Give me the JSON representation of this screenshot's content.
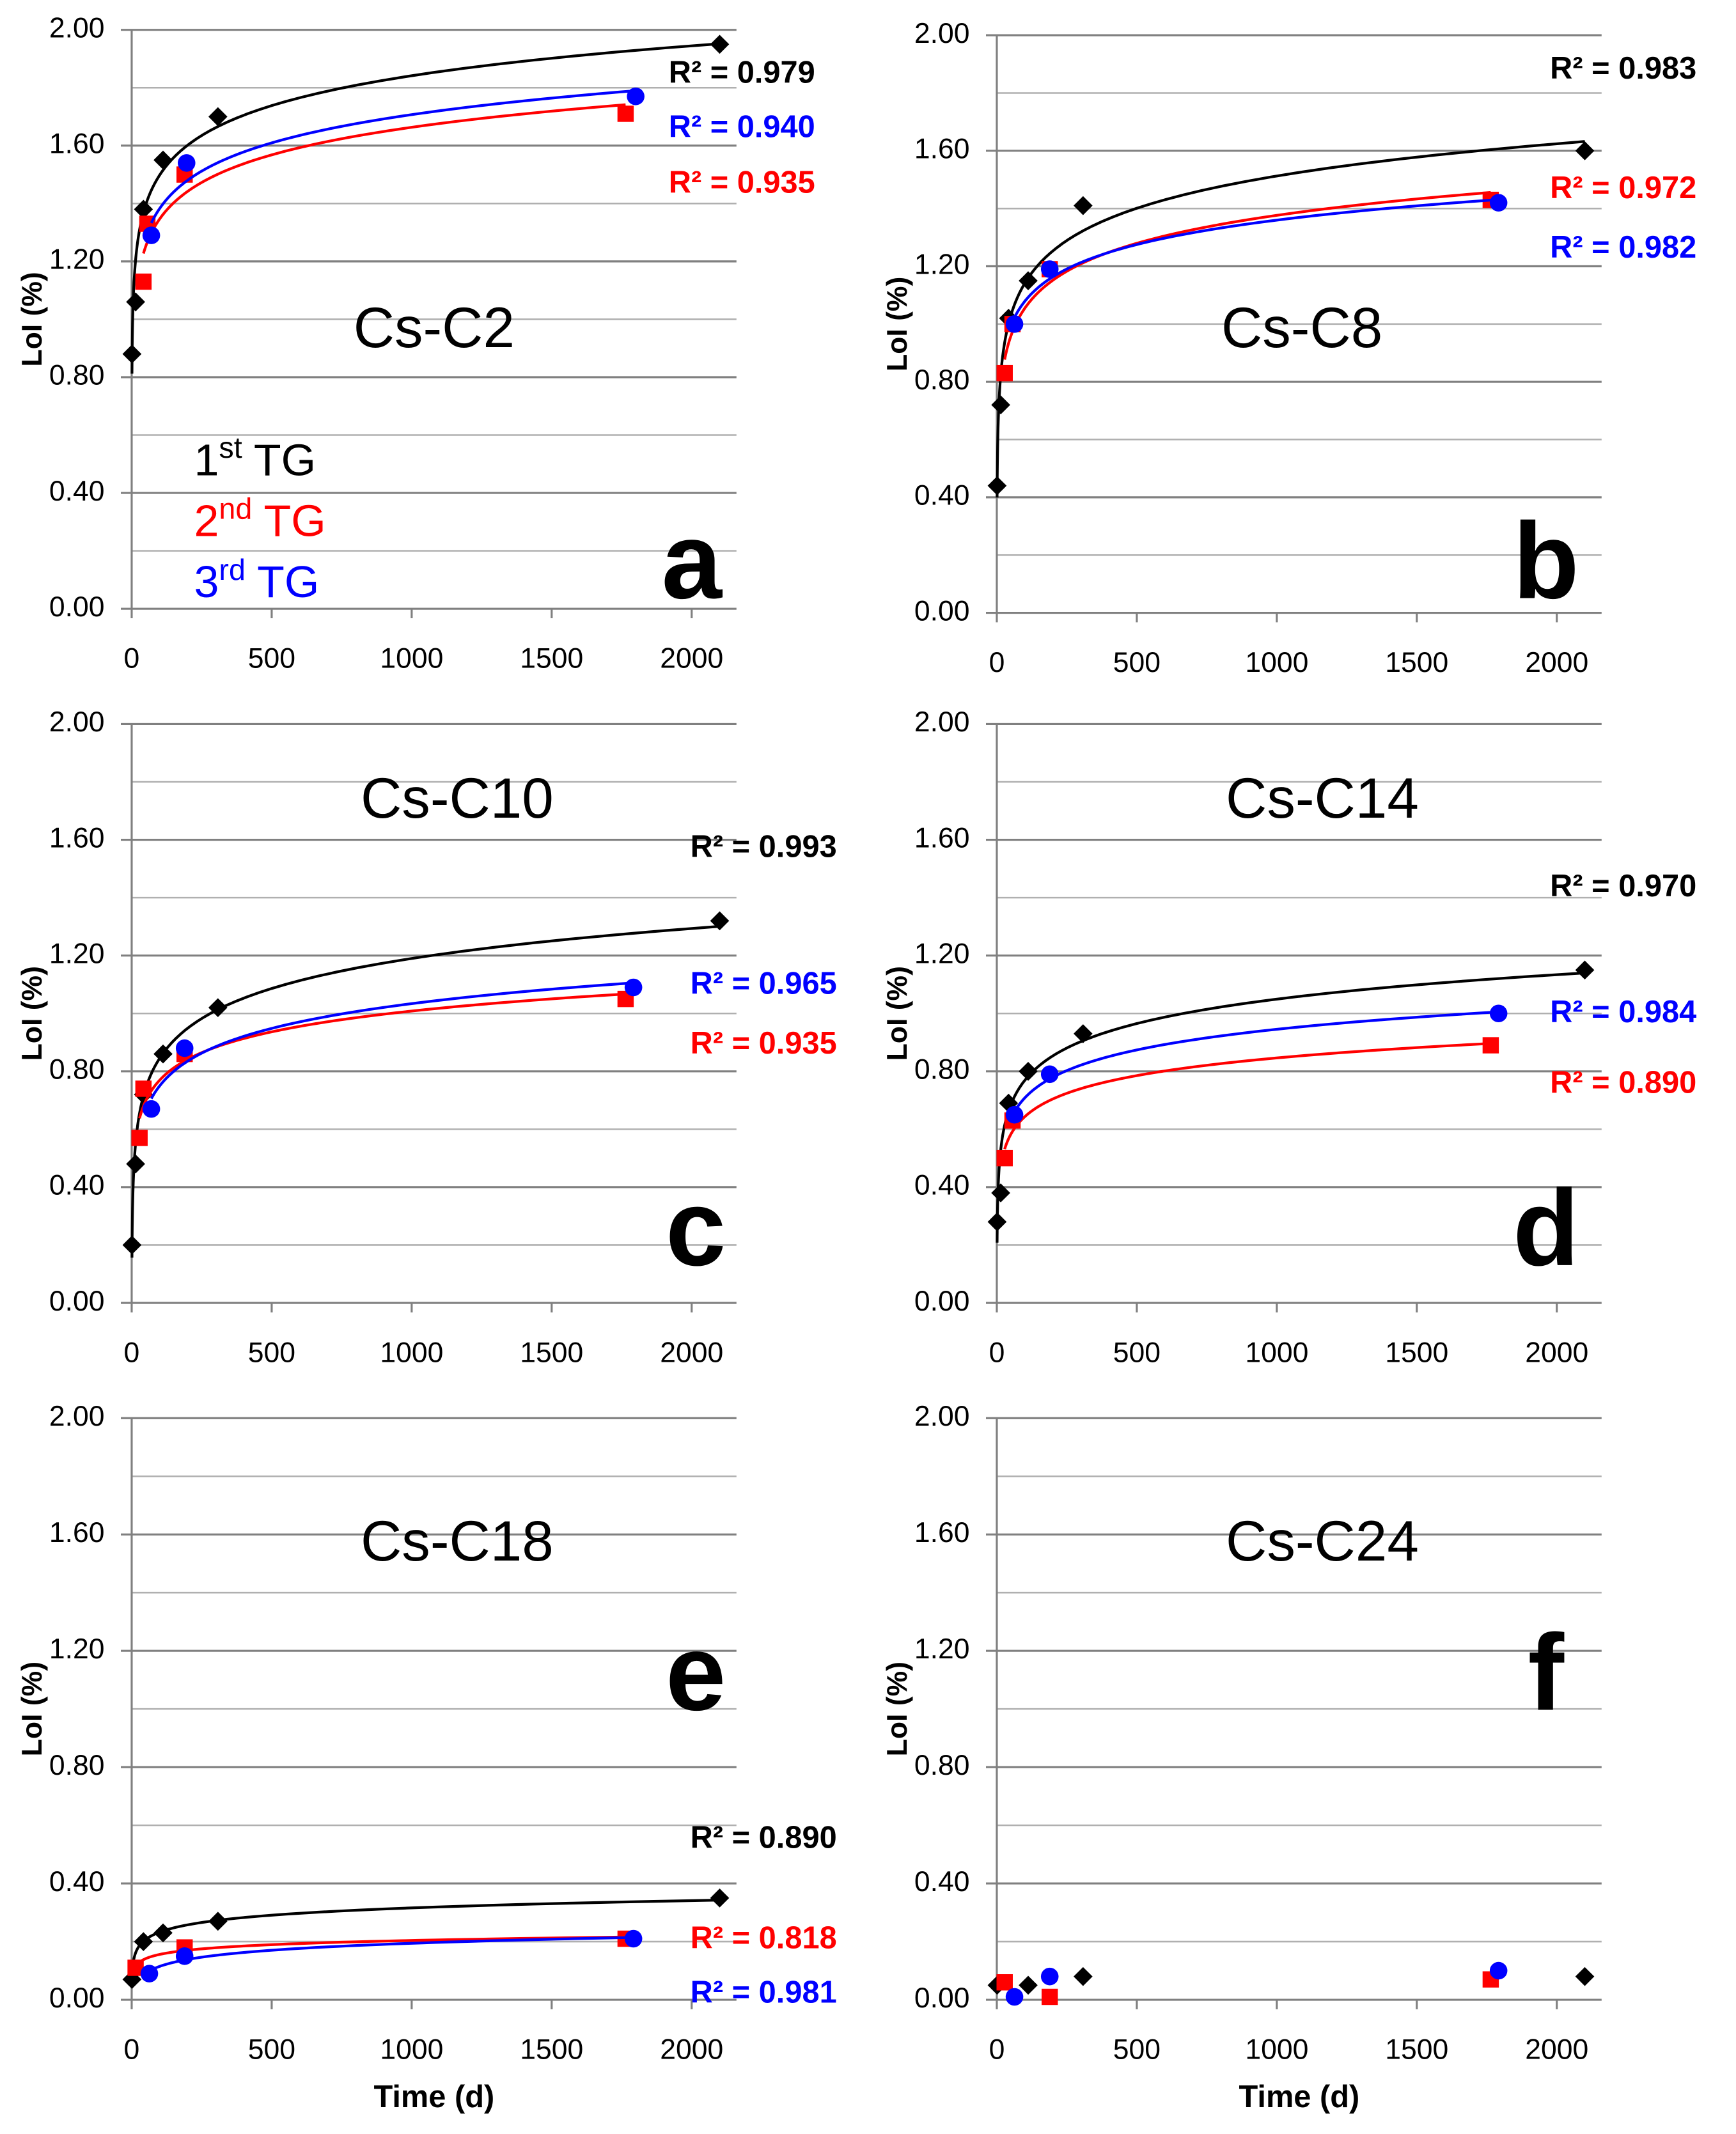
{
  "chart_data": [
    {
      "type": "scatter",
      "title": "Cs-C2",
      "panel_label": "a",
      "ylabel": "LoI (%)",
      "fit": true,
      "legend": true,
      "xlim": [
        0,
        2160
      ],
      "ylim": [
        0,
        2
      ],
      "xticks": [
        0,
        500,
        1000,
        1500,
        2000
      ],
      "yticks": [
        {
          "value": 0,
          "label": "0.00"
        },
        {
          "value": 0.4,
          "label": "0.40"
        },
        {
          "value": 0.8,
          "label": "0.80"
        },
        {
          "value": 1.2,
          "label": "1.20"
        },
        {
          "value": 1.6,
          "label": "1.60"
        },
        {
          "value": 2,
          "label": "2.00"
        }
      ],
      "minor_yticks": [
        0.2,
        0.6,
        1,
        1.4,
        1.8
      ],
      "series": [
        {
          "name": "1st TG",
          "color": "#000000",
          "marker": "diamond",
          "x": [
            1,
            14,
            42,
            112,
            308,
            2100
          ],
          "values": [
            0.88,
            1.06,
            1.38,
            1.55,
            1.7,
            1.95
          ],
          "r2_label": "R² = 0.979"
        },
        {
          "name": "2nd TG",
          "color": "#ff0000",
          "marker": "square",
          "x": [
            42,
            56,
            189,
            1764
          ],
          "values": [
            1.13,
            1.33,
            1.5,
            1.71
          ],
          "r2_label": "R² = 0.935"
        },
        {
          "name": "3rd TG",
          "color": "#0000ff",
          "marker": "circle",
          "x": [
            70,
            196,
            1800
          ],
          "values": [
            1.29,
            1.54,
            1.77
          ],
          "r2_label": "R² = 0.940"
        }
      ]
    },
    {
      "type": "scatter",
      "title": "Cs-C8",
      "panel_label": "b",
      "ylabel": "LoI (%)",
      "fit": true,
      "xlim": [
        0,
        2160
      ],
      "ylim": [
        0,
        2
      ],
      "xticks": [
        0,
        500,
        1000,
        1500,
        2000
      ],
      "yticks": [
        {
          "value": 0,
          "label": "0.00"
        },
        {
          "value": 0.4,
          "label": "0.40"
        },
        {
          "value": 0.8,
          "label": "0.80"
        },
        {
          "value": 1.2,
          "label": "1.20"
        },
        {
          "value": 1.6,
          "label": "1.60"
        },
        {
          "value": 2,
          "label": "2.00"
        }
      ],
      "minor_yticks": [
        0.2,
        0.6,
        1,
        1.4,
        1.8
      ],
      "series": [
        {
          "color": "#000000",
          "marker": "diamond",
          "x": [
            1,
            14,
            42,
            112,
            308,
            2100
          ],
          "values": [
            0.44,
            0.72,
            1.02,
            1.15,
            1.41,
            1.6
          ],
          "r2_label": "R² = 0.983"
        },
        {
          "color": "#ff0000",
          "marker": "square",
          "x": [
            28,
            56,
            189,
            1764
          ],
          "values": [
            0.83,
            1.0,
            1.19,
            1.43
          ],
          "r2_label": "R² = 0.972"
        },
        {
          "color": "#0000ff",
          "marker": "circle",
          "x": [
            63,
            189,
            1792
          ],
          "values": [
            1.0,
            1.19,
            1.42
          ],
          "r2_label": "R² = 0.982"
        }
      ]
    },
    {
      "type": "scatter",
      "title": "Cs-C10",
      "panel_label": "c",
      "ylabel": "LoI (%)",
      "fit": true,
      "xlim": [
        0,
        2160
      ],
      "ylim": [
        0,
        2
      ],
      "xticks": [
        0,
        500,
        1000,
        1500,
        2000
      ],
      "yticks": [
        {
          "value": 0,
          "label": "0.00"
        },
        {
          "value": 0.4,
          "label": "0.40"
        },
        {
          "value": 0.8,
          "label": "0.80"
        },
        {
          "value": 1.2,
          "label": "1.20"
        },
        {
          "value": 1.6,
          "label": "1.60"
        },
        {
          "value": 2,
          "label": "2.00"
        }
      ],
      "minor_yticks": [
        0.2,
        0.6,
        1,
        1.4,
        1.8
      ],
      "series": [
        {
          "color": "#000000",
          "marker": "diamond",
          "x": [
            1,
            14,
            42,
            112,
            308,
            2100
          ],
          "values": [
            0.2,
            0.48,
            0.72,
            0.86,
            1.02,
            1.32
          ],
          "r2_label": "R² = 0.993"
        },
        {
          "color": "#ff0000",
          "marker": "square",
          "x": [
            28,
            42,
            189,
            1764
          ],
          "values": [
            0.57,
            0.74,
            0.86,
            1.05
          ],
          "r2_label": "R² = 0.935"
        },
        {
          "color": "#0000ff",
          "marker": "circle",
          "x": [
            70,
            189,
            1792
          ],
          "values": [
            0.67,
            0.88,
            1.09
          ],
          "r2_label": "R² = 0.965"
        }
      ]
    },
    {
      "type": "scatter",
      "title": "Cs-C14",
      "panel_label": "d",
      "ylabel": "LoI (%)",
      "fit": true,
      "xlim": [
        0,
        2160
      ],
      "ylim": [
        0,
        2
      ],
      "xticks": [
        0,
        500,
        1000,
        1500,
        2000
      ],
      "yticks": [
        {
          "value": 0,
          "label": "0.00"
        },
        {
          "value": 0.4,
          "label": "0.40"
        },
        {
          "value": 0.8,
          "label": "0.80"
        },
        {
          "value": 1.2,
          "label": "1.20"
        },
        {
          "value": 1.6,
          "label": "1.60"
        },
        {
          "value": 2,
          "label": "2.00"
        }
      ],
      "minor_yticks": [
        0.2,
        0.6,
        1,
        1.4,
        1.8
      ],
      "series": [
        {
          "color": "#000000",
          "marker": "diamond",
          "x": [
            1,
            14,
            42,
            112,
            308,
            2100
          ],
          "values": [
            0.28,
            0.38,
            0.69,
            0.8,
            0.93,
            1.15
          ],
          "r2_label": "R² = 0.970"
        },
        {
          "color": "#ff0000",
          "marker": "square",
          "x": [
            28,
            56,
            1764
          ],
          "values": [
            0.5,
            0.63,
            0.89
          ],
          "r2_label": "R² = 0.890"
        },
        {
          "color": "#0000ff",
          "marker": "circle",
          "x": [
            63,
            189,
            1792
          ],
          "values": [
            0.65,
            0.79,
            1.0
          ],
          "r2_label": "R² = 0.984"
        }
      ]
    },
    {
      "type": "scatter",
      "title": "Cs-C18",
      "panel_label": "e",
      "ylabel": "LoI (%)",
      "xlabel": "Time (d)",
      "fit": true,
      "xlim": [
        0,
        2160
      ],
      "ylim": [
        0,
        2
      ],
      "xticks": [
        0,
        500,
        1000,
        1500,
        2000
      ],
      "yticks": [
        {
          "value": 0,
          "label": "0.00"
        },
        {
          "value": 0.4,
          "label": "0.40"
        },
        {
          "value": 0.8,
          "label": "0.80"
        },
        {
          "value": 1.2,
          "label": "1.20"
        },
        {
          "value": 1.6,
          "label": "1.60"
        },
        {
          "value": 2,
          "label": "2.00"
        }
      ],
      "minor_yticks": [
        0.2,
        0.6,
        1,
        1.4,
        1.8
      ],
      "series": [
        {
          "color": "#000000",
          "marker": "diamond",
          "x": [
            1,
            42,
            112,
            308,
            2100
          ],
          "values": [
            0.07,
            0.2,
            0.23,
            0.27,
            0.35
          ],
          "r2_label": "R² = 0.890"
        },
        {
          "color": "#ff0000",
          "marker": "square",
          "x": [
            14,
            189,
            1764
          ],
          "values": [
            0.11,
            0.18,
            0.21
          ],
          "r2_label": "R² = 0.818"
        },
        {
          "color": "#0000ff",
          "marker": "circle",
          "x": [
            63,
            189,
            1792
          ],
          "values": [
            0.09,
            0.15,
            0.21
          ],
          "r2_label": "R² = 0.981"
        }
      ]
    },
    {
      "type": "scatter",
      "title": "Cs-C24",
      "panel_label": "f",
      "ylabel": "LoI (%)",
      "xlabel": "Time (d)",
      "fit": false,
      "xlim": [
        0,
        2160
      ],
      "ylim": [
        0,
        2
      ],
      "xticks": [
        0,
        500,
        1000,
        1500,
        2000
      ],
      "yticks": [
        {
          "value": 0,
          "label": "0.00"
        },
        {
          "value": 0.4,
          "label": "0.40"
        },
        {
          "value": 0.8,
          "label": "0.80"
        },
        {
          "value": 1.2,
          "label": "1.20"
        },
        {
          "value": 1.6,
          "label": "1.60"
        },
        {
          "value": 2,
          "label": "2.00"
        }
      ],
      "minor_yticks": [
        0.2,
        0.6,
        1,
        1.4,
        1.8
      ],
      "series": [
        {
          "color": "#000000",
          "marker": "diamond",
          "x": [
            1,
            112,
            308,
            2100
          ],
          "values": [
            0.05,
            0.05,
            0.08,
            0.08
          ]
        },
        {
          "color": "#ff0000",
          "marker": "square",
          "x": [
            28,
            189,
            1764
          ],
          "values": [
            0.06,
            0.01,
            0.07
          ]
        },
        {
          "color": "#0000ff",
          "marker": "circle",
          "x": [
            63,
            189,
            1792
          ],
          "values": [
            0.01,
            0.08,
            0.1
          ]
        }
      ]
    }
  ]
}
